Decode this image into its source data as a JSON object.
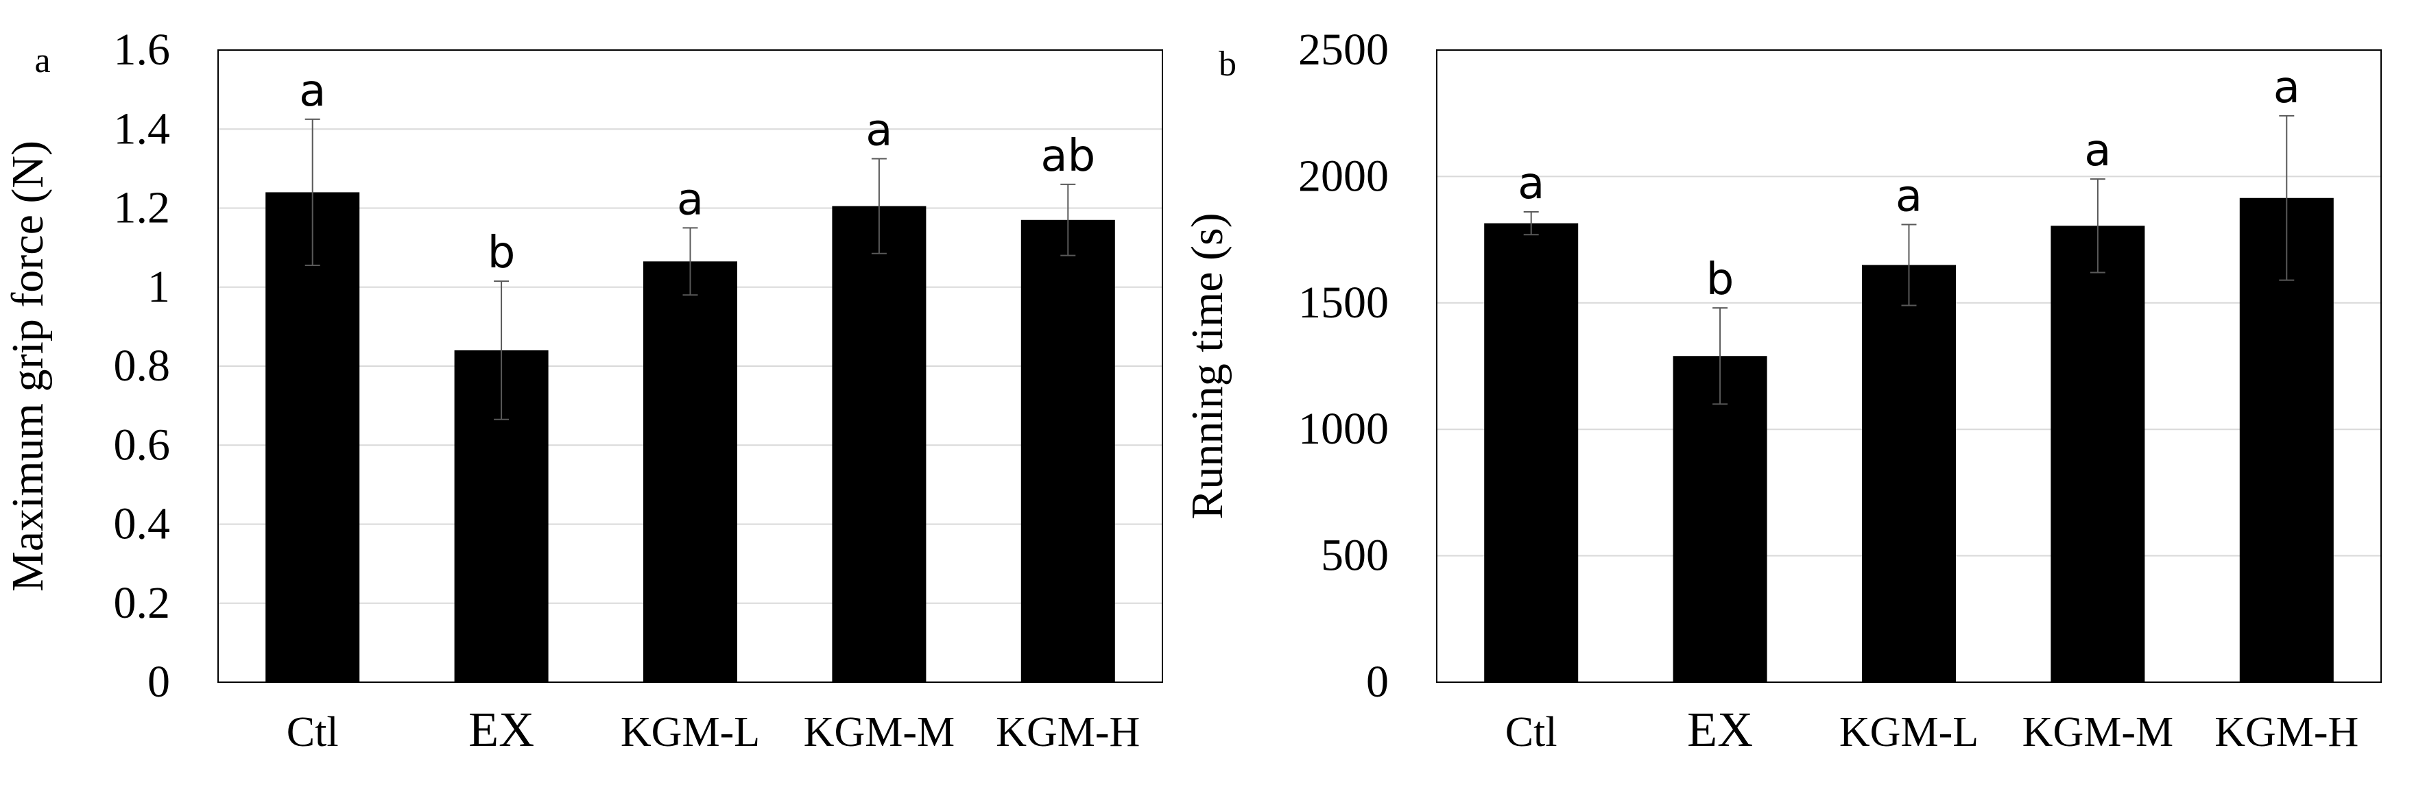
{
  "chart_data": [
    {
      "type": "bar",
      "panel_label": "a",
      "categories": [
        "Ctl",
        "EX",
        "KGM-L",
        "KGM-M",
        "KGM-H"
      ],
      "values": [
        1.24,
        0.84,
        1.065,
        1.205,
        1.17
      ],
      "errors": [
        0.185,
        0.175,
        0.085,
        0.12,
        0.09
      ],
      "significance": [
        "a",
        "b",
        "a",
        "a",
        "ab"
      ],
      "ylabel": "Maximum grip force (N)",
      "xlabel": "",
      "ylim": [
        0,
        1.6
      ],
      "yticks": [
        "0",
        "0.2",
        "0.4",
        "0.6",
        "0.8",
        "1",
        "1.2",
        "1.4",
        "1.6"
      ],
      "grid": true,
      "bar_color": "#000000",
      "grid_color": "#d9d9d9"
    },
    {
      "type": "bar",
      "panel_label": "b",
      "categories": [
        "Ctl",
        "EX",
        "KGM-L",
        "KGM-M",
        "KGM-H"
      ],
      "values": [
        1815,
        1290,
        1650,
        1805,
        1915
      ],
      "errors": [
        45,
        190,
        160,
        185,
        325
      ],
      "significance": [
        "a",
        "b",
        "a",
        "a",
        "a"
      ],
      "ylabel": "Running time (s)",
      "xlabel": "",
      "ylim": [
        0,
        2500
      ],
      "yticks": [
        "0",
        "500",
        "1000",
        "1500",
        "2000",
        "2500"
      ],
      "grid": true,
      "bar_color": "#000000",
      "grid_color": "#d9d9d9"
    }
  ]
}
